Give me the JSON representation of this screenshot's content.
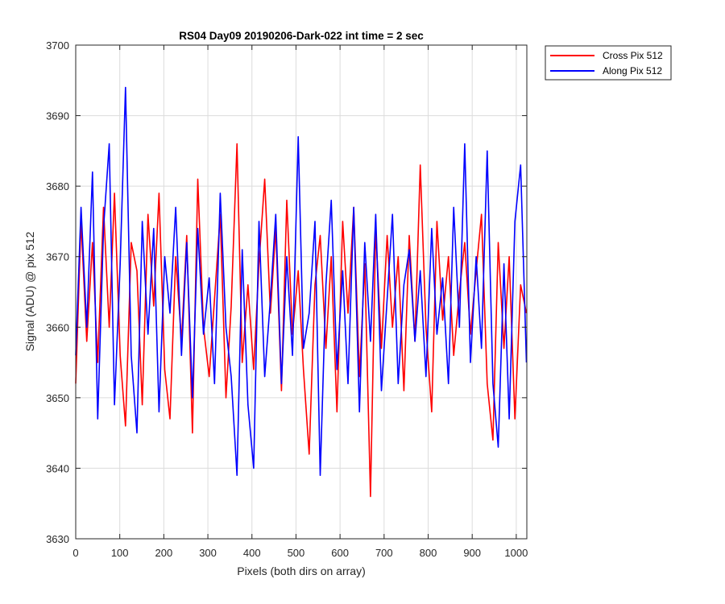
{
  "chart_data": {
    "type": "line",
    "title": "RS04 Day09 20190206-Dark-022 int time = 2 sec",
    "xlabel": "Pixels (both dirs on array)",
    "ylabel": "Signal (ADU) @ pix 512",
    "xlim": [
      0,
      1024
    ],
    "ylim": [
      3630,
      3700
    ],
    "xticks": [
      0,
      100,
      200,
      300,
      400,
      500,
      600,
      700,
      800,
      900,
      1000
    ],
    "yticks": [
      3630,
      3640,
      3650,
      3660,
      3670,
      3680,
      3690,
      3700
    ],
    "grid": true,
    "legend_position": "outside-top-right",
    "series": [
      {
        "name": "Cross Pix 512",
        "color": "#ff0000",
        "x": [
          0,
          12,
          25,
          38,
          50,
          63,
          76,
          88,
          101,
          113,
          126,
          139,
          151,
          164,
          177,
          189,
          202,
          214,
          227,
          240,
          252,
          265,
          277,
          290,
          303,
          315,
          328,
          341,
          353,
          366,
          378,
          391,
          404,
          416,
          429,
          442,
          454,
          467,
          479,
          492,
          505,
          517,
          530,
          543,
          555,
          568,
          580,
          593,
          606,
          618,
          631,
          644,
          656,
          669,
          681,
          694,
          707,
          719,
          732,
          745,
          757,
          770,
          782,
          795,
          808,
          820,
          833,
          846,
          858,
          871,
          883,
          896,
          909,
          921,
          934,
          947,
          959,
          972,
          984,
          997,
          1010,
          1023
        ],
        "values": [
          3652,
          3675,
          3658,
          3672,
          3655,
          3677,
          3660,
          3679,
          3656,
          3646,
          3672,
          3668,
          3649,
          3676,
          3663,
          3679,
          3654,
          3647,
          3670,
          3658,
          3673,
          3645,
          3681,
          3660,
          3653,
          3664,
          3676,
          3650,
          3663,
          3686,
          3655,
          3666,
          3654,
          3669,
          3681,
          3662,
          3674,
          3651,
          3678,
          3659,
          3668,
          3654,
          3642,
          3666,
          3673,
          3657,
          3670,
          3648,
          3675,
          3662,
          3677,
          3653,
          3669,
          3636,
          3674,
          3657,
          3673,
          3660,
          3670,
          3651,
          3673,
          3658,
          3683,
          3660,
          3648,
          3675,
          3661,
          3670,
          3656,
          3665,
          3672,
          3659,
          3668,
          3676,
          3652,
          3644,
          3672,
          3657,
          3670,
          3647,
          3666,
          3662
        ]
      },
      {
        "name": "Along Pix 512",
        "color": "#0000ff",
        "x": [
          0,
          12,
          25,
          38,
          50,
          63,
          76,
          88,
          101,
          113,
          126,
          139,
          151,
          164,
          177,
          189,
          202,
          214,
          227,
          240,
          252,
          265,
          277,
          290,
          303,
          315,
          328,
          341,
          353,
          366,
          378,
          391,
          404,
          416,
          429,
          442,
          454,
          467,
          479,
          492,
          505,
          517,
          530,
          543,
          555,
          568,
          580,
          593,
          606,
          618,
          631,
          644,
          656,
          669,
          681,
          694,
          707,
          719,
          732,
          745,
          757,
          770,
          782,
          795,
          808,
          820,
          833,
          846,
          858,
          871,
          883,
          896,
          909,
          921,
          934,
          947,
          959,
          972,
          984,
          997,
          1010,
          1023
        ],
        "values": [
          3656,
          3677,
          3660,
          3682,
          3647,
          3674,
          3686,
          3649,
          3669,
          3694,
          3656,
          3645,
          3675,
          3659,
          3674,
          3648,
          3670,
          3662,
          3677,
          3656,
          3672,
          3650,
          3674,
          3659,
          3667,
          3652,
          3679,
          3660,
          3653,
          3639,
          3671,
          3649,
          3640,
          3675,
          3653,
          3664,
          3676,
          3652,
          3670,
          3656,
          3687,
          3657,
          3662,
          3675,
          3639,
          3666,
          3678,
          3654,
          3668,
          3652,
          3677,
          3648,
          3672,
          3658,
          3676,
          3651,
          3664,
          3676,
          3652,
          3666,
          3671,
          3658,
          3668,
          3653,
          3674,
          3659,
          3667,
          3652,
          3677,
          3660,
          3686,
          3655,
          3670,
          3657,
          3685,
          3652,
          3643,
          3669,
          3647,
          3675,
          3683,
          3655
        ]
      }
    ]
  }
}
